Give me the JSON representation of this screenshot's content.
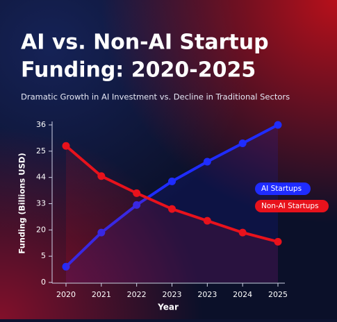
{
  "chart_data": {
    "type": "line",
    "title_lines": [
      "AI vs. Non-AI Startup",
      "Funding: 2020-2025"
    ],
    "subtitle": "Dramatic Growth in AI Investment vs. Decline in Traditional Sectors",
    "x_label": "Year",
    "y_label": "Funding (Billions USD)",
    "categories": [
      "2020",
      "2021",
      "2022",
      "2023",
      "2023",
      "2024",
      "2025"
    ],
    "y_categories": [
      "0",
      "5",
      "20",
      "33",
      "44",
      "25",
      "36"
    ],
    "series": [
      {
        "name": "AI Startups",
        "color": "#1f2cff",
        "values": [
          0.6,
          1.9,
          2.95,
          3.85,
          4.6,
          5.3,
          6.0
        ]
      },
      {
        "name": "Non-AI Startups",
        "color": "#e8121c",
        "values": [
          5.2,
          4.05,
          3.4,
          2.8,
          2.35,
          1.9,
          1.55
        ]
      }
    ]
  }
}
